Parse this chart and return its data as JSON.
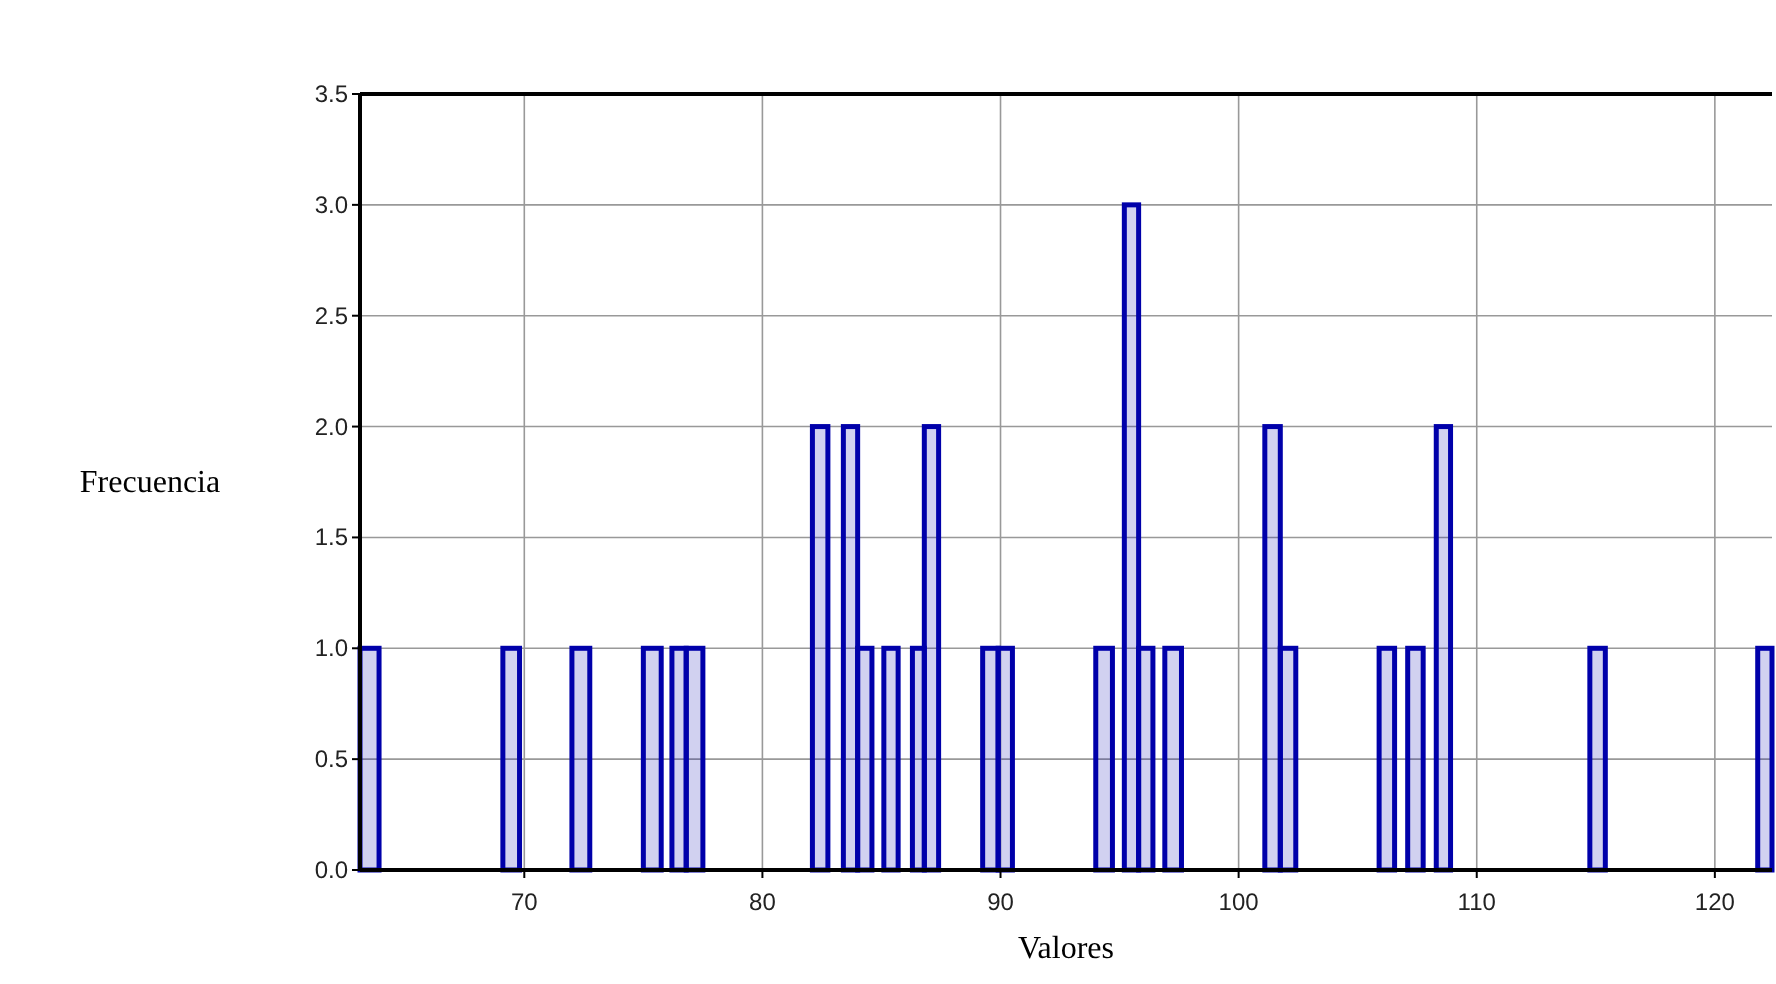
{
  "chart_data": {
    "type": "histogram",
    "xlabel": "Valores",
    "ylabel": "Frecuencia",
    "bins": [
      63.1,
      63.9,
      69.1,
      69.8,
      72.0,
      72.75,
      75.0,
      75.75,
      76.2,
      76.8,
      77.5,
      82.1,
      82.75,
      83.4,
      84.0,
      84.6,
      85.1,
      85.7,
      86.3,
      86.8,
      87.4,
      89.25,
      89.9,
      90.5,
      94.0,
      94.7,
      95.2,
      95.8,
      96.4,
      96.9,
      97.6,
      101.1,
      101.75,
      102.4,
      105.9,
      106.55,
      107.1,
      107.75,
      108.3,
      108.9,
      114.75,
      115.4,
      121.8,
      122.4
    ],
    "values": [
      1,
      0,
      1,
      0,
      1,
      0,
      1,
      0,
      1,
      1,
      0,
      2,
      0,
      2,
      1,
      0,
      1,
      0,
      1,
      2,
      0,
      1,
      1,
      0,
      1,
      0,
      3,
      1,
      0,
      1,
      0,
      2,
      1,
      0,
      1,
      0,
      1,
      0,
      2,
      0,
      1,
      0,
      1
    ],
    "color": "#0000aa",
    "xlim": [
      63.1,
      122.4
    ],
    "xticks": [
      70,
      80,
      90,
      100,
      110,
      120
    ],
    "ylim": [
      0,
      3.5
    ],
    "yticks": [
      {
        "value": 0,
        "label": "0.0"
      },
      {
        "value": 0.5,
        "label": "0.5"
      },
      {
        "value": 1,
        "label": "1.0"
      },
      {
        "value": 1.5,
        "label": "1.5"
      },
      {
        "value": 2,
        "label": "2.0"
      },
      {
        "value": 2.5,
        "label": "2.5"
      },
      {
        "value": 3,
        "label": "3.0"
      },
      {
        "value": 3.5,
        "label": "3.5"
      }
    ],
    "grid": true
  }
}
